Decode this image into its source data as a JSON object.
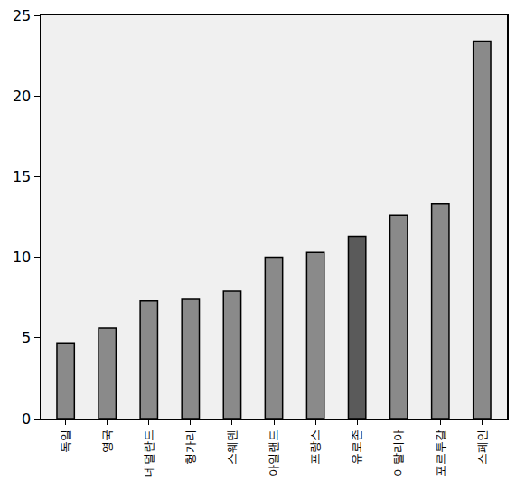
{
  "chart_data": {
    "type": "bar",
    "categories": [
      "독일",
      "영국",
      "네덜란드",
      "헝가리",
      "스웨덴",
      "아일랜드",
      "프랑스",
      "유로존",
      "이탈리아",
      "포르투갈",
      "스페인"
    ],
    "values": [
      4.7,
      5.6,
      7.3,
      7.4,
      7.9,
      10.0,
      10.3,
      11.3,
      12.6,
      13.3,
      23.4
    ],
    "colors": [
      "#8a8a8a",
      "#8a8a8a",
      "#8a8a8a",
      "#8a8a8a",
      "#8a8a8a",
      "#8a8a8a",
      "#8a8a8a",
      "#5a5a5a",
      "#8a8a8a",
      "#8a8a8a",
      "#8a8a8a"
    ],
    "ylim": [
      0,
      25
    ],
    "yticks": [
      0,
      5,
      10,
      15,
      20,
      25
    ],
    "grid": false
  }
}
